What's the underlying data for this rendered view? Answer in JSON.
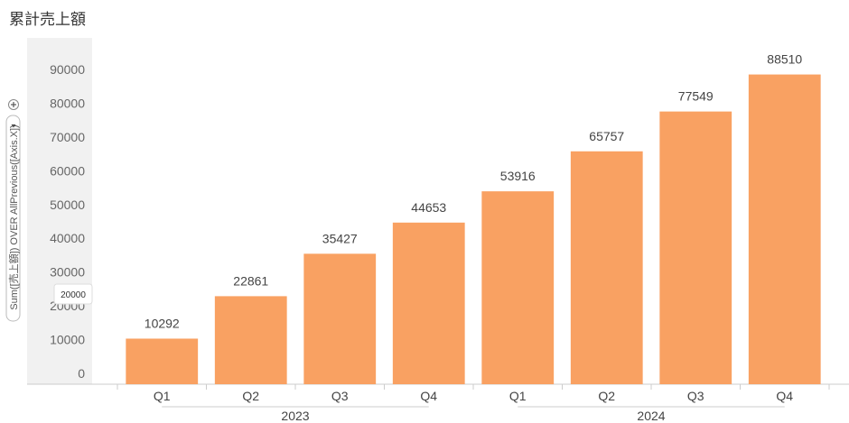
{
  "chart_data": {
    "type": "bar",
    "title": "累計売上額",
    "ylabel": "Sum([売上額]) OVER AllPrevious([Axis.X])",
    "xlabel": "",
    "categories": [
      {
        "group": "2023",
        "quarter": "Q1"
      },
      {
        "group": "2023",
        "quarter": "Q2"
      },
      {
        "group": "2023",
        "quarter": "Q3"
      },
      {
        "group": "2023",
        "quarter": "Q4"
      },
      {
        "group": "2024",
        "quarter": "Q1"
      },
      {
        "group": "2024",
        "quarter": "Q2"
      },
      {
        "group": "2024",
        "quarter": "Q3"
      },
      {
        "group": "2024",
        "quarter": "Q4"
      }
    ],
    "groups": [
      "2023",
      "2024"
    ],
    "values": [
      10292,
      22861,
      35427,
      44653,
      53916,
      65757,
      77549,
      88510
    ],
    "ylim": [
      0,
      95000
    ],
    "yticks": [
      0,
      10000,
      20000,
      30000,
      40000,
      50000,
      60000,
      70000,
      80000,
      90000
    ],
    "tooltip_value": "20000",
    "bar_color": "#f9a162",
    "grid": false,
    "legend": "none"
  }
}
